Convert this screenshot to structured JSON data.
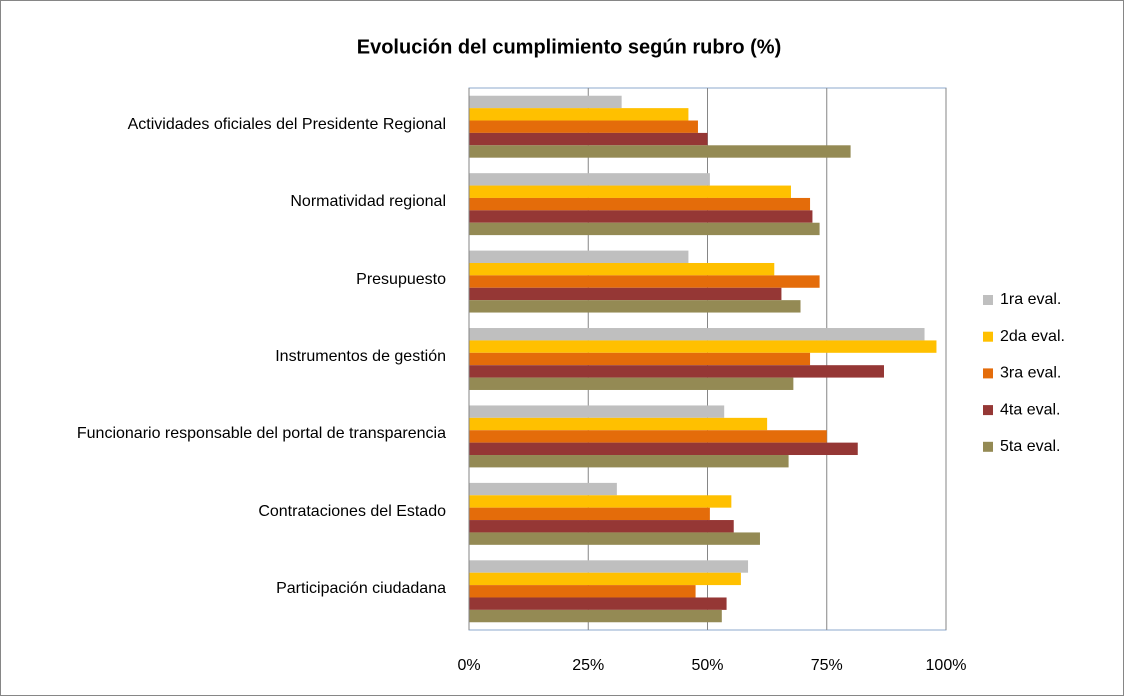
{
  "chart_data": {
    "type": "bar",
    "orientation": "horizontal",
    "title": "Evolución del cumplimiento según rubro (%)",
    "categories": [
      "Actividades oficiales del Presidente Regional",
      "Normatividad regional",
      "Presupuesto",
      "Instrumentos de gestión",
      "Funcionario responsable del portal de transparencia",
      "Contrataciones del Estado",
      "Participación ciudadana"
    ],
    "series": [
      {
        "name": "1ra eval.",
        "color": "#bfbfbf",
        "values": [
          32,
          50.5,
          46,
          95.5,
          53.5,
          31,
          58.5
        ]
      },
      {
        "name": "2da eval.",
        "color": "#ffc000",
        "values": [
          46,
          67.5,
          64,
          98,
          62.5,
          55,
          57
        ]
      },
      {
        "name": "3ra eval.",
        "color": "#e46c0a",
        "values": [
          48,
          71.5,
          73.5,
          71.5,
          75,
          50.5,
          47.5
        ]
      },
      {
        "name": "4ta eval.",
        "color": "#953735",
        "values": [
          50,
          72,
          65.5,
          87,
          81.5,
          55.5,
          54
        ]
      },
      {
        "name": "5ta eval.",
        "color": "#948a54",
        "values": [
          80,
          73.5,
          69.5,
          68,
          67,
          61,
          53
        ]
      }
    ],
    "xlim": [
      0,
      100
    ],
    "xticks": [
      {
        "value": 0,
        "label": "0%"
      },
      {
        "value": 25,
        "label": "25%"
      },
      {
        "value": 50,
        "label": "50%"
      },
      {
        "value": 75,
        "label": "75%"
      },
      {
        "value": 100,
        "label": "100%"
      }
    ],
    "grid": true,
    "legend": "right"
  }
}
